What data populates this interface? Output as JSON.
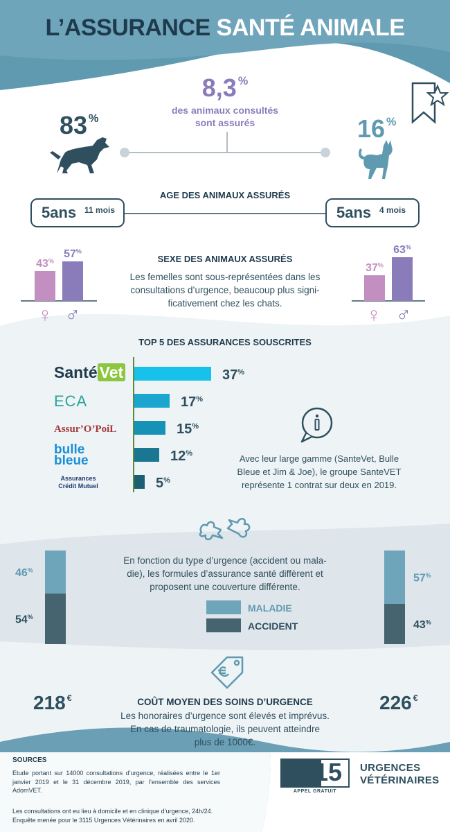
{
  "header": {
    "title_part1": "L’ASSURANCE",
    "title_part2": "SANTÉ ANIMALE"
  },
  "colors": {
    "dark": "#2f4f5e",
    "teal": "#5f9ab1",
    "purple": "#8a7bbb",
    "pink": "#c28fc0",
    "cyan": "#17c2ea",
    "light_bg": "#eef3f6"
  },
  "consult": {
    "percent": "8,3",
    "percent_unit": "%",
    "text_line1": "des animaux consultés",
    "text_line2": "sont assurés",
    "dog_percent": "83",
    "cat_percent": "16",
    "unit": "%"
  },
  "age": {
    "title": "AGE DES ANIMAUX ASSURÉS",
    "dog_years": "5ans",
    "dog_months": "11 mois",
    "cat_years": "5ans",
    "cat_months": "4 mois"
  },
  "sex": {
    "title": "SEXE DES ANIMAUX ASSURÉS",
    "text_line1": "Les femelles sont sous-représentées dans les",
    "text_line2": "consultations d’urgence, beaucoup plus signi-",
    "text_line3": "ficativement chez les chats.",
    "female_symbol": "♀",
    "male_symbol": "♂"
  },
  "top5": {
    "title": "TOP 5 DES ASSURANCES SOUSCRITES",
    "logos": {
      "santevet_part1": "Santé",
      "santevet_part2": "Vet",
      "eca": "ECA",
      "assuropoil": "Assur’O’PoiL",
      "bulle1": "bulle",
      "bulle2": "bleue",
      "cm1": "Assurances",
      "cm2": "Crédit Mutuel"
    },
    "info_line1": "Avec leur large gamme (SanteVet, Bulle",
    "info_line2": "Bleue et Jim & Joe), le groupe SanteVET",
    "info_line3": "représente 1 contrat sur deux en 2019."
  },
  "coverage": {
    "text_line1": "En fonction du type d’urgence (accident ou mala-",
    "text_line2": "die), les formules d’assurance santé diffèrent et",
    "text_line3": "proposent une couverture différente.",
    "legend_maladie": "MALADIE",
    "legend_accident": "ACCIDENT"
  },
  "cost": {
    "title": "COÛT MOYEN DES SOINS D’URGENCE",
    "text_line1": "Les honoraires d’urgence sont élevés et imprévus.",
    "text_line2": "En cas de traumatologie, ils peuvent atteindre",
    "text_line3": "plus de 1000€.",
    "dog_cost": "218",
    "cat_cost": "226",
    "currency": "€"
  },
  "sources": {
    "title": "SOURCES",
    "line1": "Etude portant sur 14000 consultations d’urgence, réalisées entre le 1er janvier 2019 et le 31 décembre 2019, par l’ensemble des services AdomVET.",
    "line2": "Les consultations ont eu lieu à domicile et en clinique d’urgence, 24h/24.",
    "line3": "Enquête menée pour le 3115 Urgences Vétérinaires en avril 2020."
  },
  "brand": {
    "number": "3115",
    "sub": "APPEL GRATUIT",
    "line1": "URGENCES",
    "line2": "VÉTÉRINAIRES"
  },
  "chart_data": [
    {
      "type": "bar",
      "title": "SEXE DES ANIMAUX ASSURÉS",
      "categories": [
        "♀",
        "♂"
      ],
      "series": [
        {
          "name": "",
          "values": [
            43,
            57
          ]
        },
        {
          "name": "",
          "values": [
            37,
            63
          ]
        }
      ],
      "unit": "%"
    },
    {
      "type": "bar",
      "title": "TOP 5 DES ASSURANCES SOUSCRITES",
      "orientation": "horizontal",
      "categories": [
        "SantéVet",
        "ECA",
        "Assur’O’PoiL",
        "bulle bleue",
        "Assurances Crédit Mutuel"
      ],
      "values": [
        37,
        17,
        15,
        12,
        5
      ],
      "unit": "%"
    },
    {
      "type": "bar",
      "stacked": true,
      "categories": [
        "MALADIE",
        "ACCIDENT"
      ],
      "series": [
        {
          "name": "",
          "values": [
            46,
            54
          ]
        },
        {
          "name": "",
          "values": [
            57,
            43
          ]
        }
      ],
      "unit": "%"
    }
  ]
}
